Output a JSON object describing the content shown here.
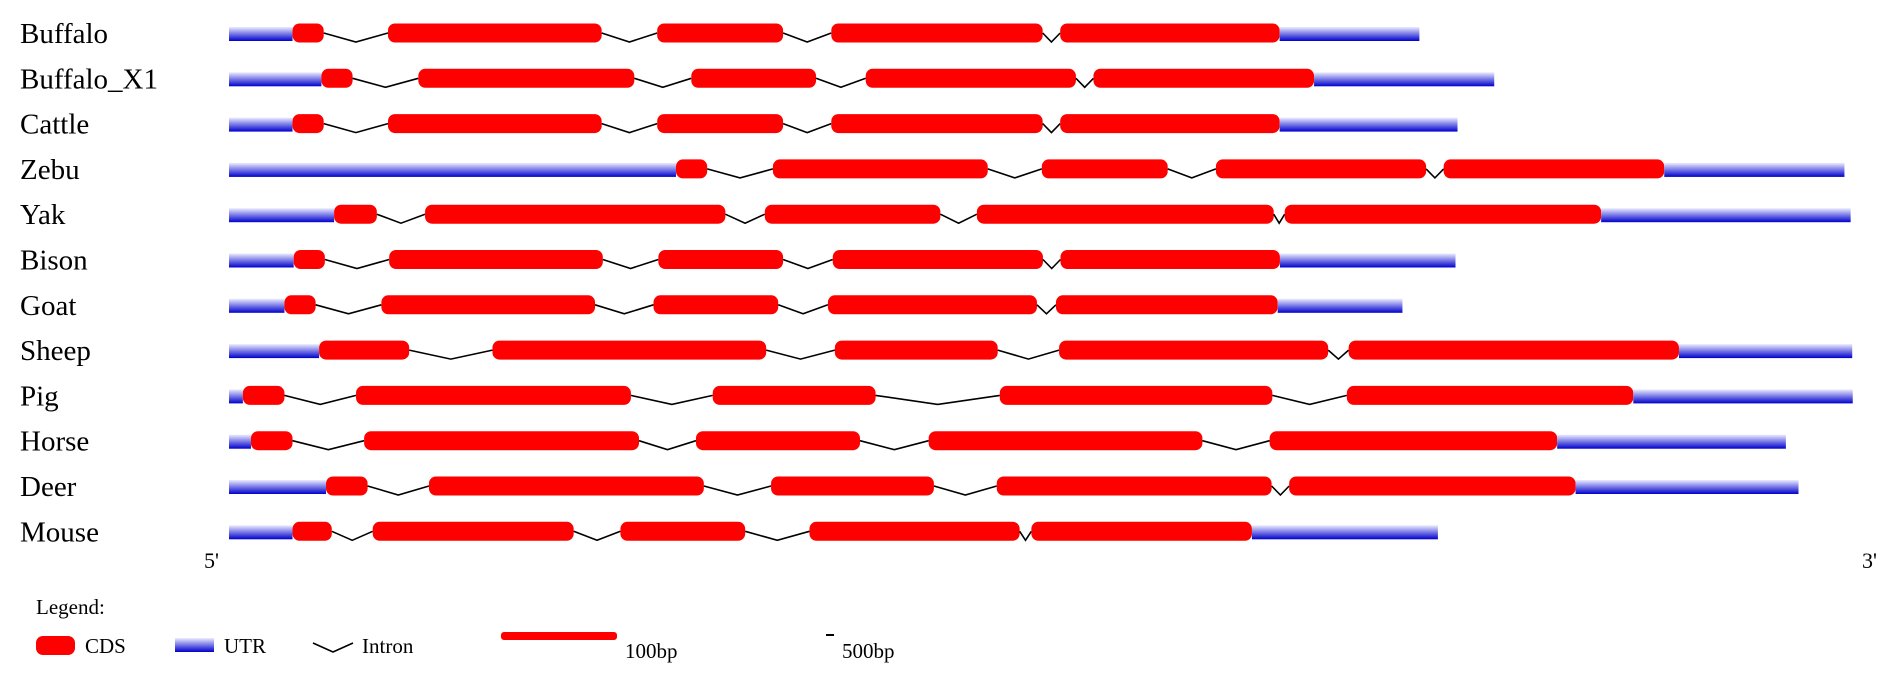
{
  "diagram": {
    "type": "gene-structure",
    "colors": {
      "cds": "#ff0000",
      "utr": "#0000cc",
      "intron": "#000000"
    },
    "end_labels": {
      "five_prime": "5'",
      "three_prime": "3'"
    },
    "genes": [
      {
        "name": "Buffalo",
        "features": [
          [
            "UTR",
            55
          ],
          [
            "CDS",
            27
          ],
          [
            "Intron",
            4400
          ],
          [
            "CDS",
            185
          ],
          [
            "Intron",
            3800
          ],
          [
            "CDS",
            109
          ],
          [
            "Intron",
            3300
          ],
          [
            "CDS",
            183
          ],
          [
            "Intron",
            1200
          ],
          [
            "CDS",
            190
          ],
          [
            "UTR",
            121
          ]
        ]
      },
      {
        "name": "Buffalo_X1",
        "features": [
          [
            "UTR",
            80
          ],
          [
            "CDS",
            27
          ],
          [
            "Intron",
            4500
          ],
          [
            "CDS",
            187
          ],
          [
            "Intron",
            3900
          ],
          [
            "CDS",
            108
          ],
          [
            "Intron",
            3400
          ],
          [
            "CDS",
            182
          ],
          [
            "Intron",
            1200
          ],
          [
            "CDS",
            191
          ],
          [
            "UTR",
            156
          ]
        ]
      },
      {
        "name": "Cattle",
        "features": [
          [
            "UTR",
            55
          ],
          [
            "CDS",
            27
          ],
          [
            "Intron",
            4400
          ],
          [
            "CDS",
            185
          ],
          [
            "Intron",
            3800
          ],
          [
            "CDS",
            109
          ],
          [
            "Intron",
            3300
          ],
          [
            "CDS",
            183
          ],
          [
            "Intron",
            1200
          ],
          [
            "CDS",
            190
          ],
          [
            "UTR",
            154
          ]
        ]
      },
      {
        "name": "Zebu",
        "features": [
          [
            "UTR",
            387
          ],
          [
            "CDS",
            27
          ],
          [
            "Intron",
            4500
          ],
          [
            "CDS",
            186
          ],
          [
            "Intron",
            3700
          ],
          [
            "CDS",
            109
          ],
          [
            "Intron",
            3300
          ],
          [
            "CDS",
            182
          ],
          [
            "Intron",
            1200
          ],
          [
            "CDS",
            191
          ],
          [
            "UTR",
            156
          ]
        ]
      },
      {
        "name": "Yak",
        "features": [
          [
            "UTR",
            91
          ],
          [
            "CDS",
            37
          ],
          [
            "Intron",
            3300
          ],
          [
            "CDS",
            260
          ],
          [
            "Intron",
            2700
          ],
          [
            "CDS",
            152
          ],
          [
            "Intron",
            2500
          ],
          [
            "CDS",
            257
          ],
          [
            "Intron",
            750
          ],
          [
            "CDS",
            274
          ],
          [
            "UTR",
            216
          ]
        ]
      },
      {
        "name": "Bison",
        "features": [
          [
            "UTR",
            56
          ],
          [
            "CDS",
            27
          ],
          [
            "Intron",
            4400
          ],
          [
            "CDS",
            185
          ],
          [
            "Intron",
            3800
          ],
          [
            "CDS",
            108
          ],
          [
            "Intron",
            3400
          ],
          [
            "CDS",
            182
          ],
          [
            "Intron",
            1200
          ],
          [
            "CDS",
            190
          ],
          [
            "UTR",
            152
          ]
        ]
      },
      {
        "name": "Goat",
        "features": [
          [
            "UTR",
            48
          ],
          [
            "CDS",
            27
          ],
          [
            "Intron",
            4500
          ],
          [
            "CDS",
            185
          ],
          [
            "Intron",
            4000
          ],
          [
            "CDS",
            108
          ],
          [
            "Intron",
            3400
          ],
          [
            "CDS",
            181
          ],
          [
            "Intron",
            1300
          ],
          [
            "CDS",
            192
          ],
          [
            "UTR",
            108
          ]
        ]
      },
      {
        "name": "Sheep",
        "features": [
          [
            "UTR",
            78
          ],
          [
            "CDS",
            78
          ],
          [
            "Intron",
            5700
          ],
          [
            "CDS",
            237
          ],
          [
            "Intron",
            4700
          ],
          [
            "CDS",
            141
          ],
          [
            "Intron",
            4200
          ],
          [
            "CDS",
            233
          ],
          [
            "Intron",
            1400
          ],
          [
            "CDS",
            286
          ],
          [
            "UTR",
            150
          ]
        ]
      },
      {
        "name": "Pig",
        "features": [
          [
            "UTR",
            12
          ],
          [
            "CDS",
            36
          ],
          [
            "Intron",
            4900
          ],
          [
            "CDS",
            238
          ],
          [
            "Intron",
            5600
          ],
          [
            "CDS",
            141
          ],
          [
            "Intron",
            8500
          ],
          [
            "CDS",
            236
          ],
          [
            "Intron",
            5100
          ],
          [
            "CDS",
            248
          ],
          [
            "UTR",
            190
          ]
        ]
      },
      {
        "name": "Horse",
        "features": [
          [
            "UTR",
            19
          ],
          [
            "CDS",
            36
          ],
          [
            "Intron",
            4900
          ],
          [
            "CDS",
            238
          ],
          [
            "Intron",
            3900
          ],
          [
            "CDS",
            142
          ],
          [
            "Intron",
            4700
          ],
          [
            "CDS",
            237
          ],
          [
            "Intron",
            4600
          ],
          [
            "CDS",
            249
          ],
          [
            "UTR",
            198
          ]
        ]
      },
      {
        "name": "Deer",
        "features": [
          [
            "UTR",
            84
          ],
          [
            "CDS",
            36
          ],
          [
            "Intron",
            4200
          ],
          [
            "CDS",
            238
          ],
          [
            "Intron",
            4600
          ],
          [
            "CDS",
            141
          ],
          [
            "Intron",
            4300
          ],
          [
            "CDS",
            238
          ],
          [
            "Intron",
            1200
          ],
          [
            "CDS",
            248
          ],
          [
            "UTR",
            193
          ]
        ]
      },
      {
        "name": "Mouse",
        "features": [
          [
            "UTR",
            55
          ],
          [
            "CDS",
            34
          ],
          [
            "Intron",
            2800
          ],
          [
            "CDS",
            174
          ],
          [
            "Intron",
            3200
          ],
          [
            "CDS",
            108
          ],
          [
            "Intron",
            4400
          ],
          [
            "CDS",
            182
          ],
          [
            "Intron",
            800
          ],
          [
            "CDS",
            191
          ],
          [
            "UTR",
            161
          ]
        ]
      }
    ]
  },
  "legend": {
    "title": "Legend:",
    "cds": "CDS",
    "utr": "UTR",
    "intron": "Intron",
    "exon_scale": "100bp",
    "intron_scale": "500bp"
  }
}
